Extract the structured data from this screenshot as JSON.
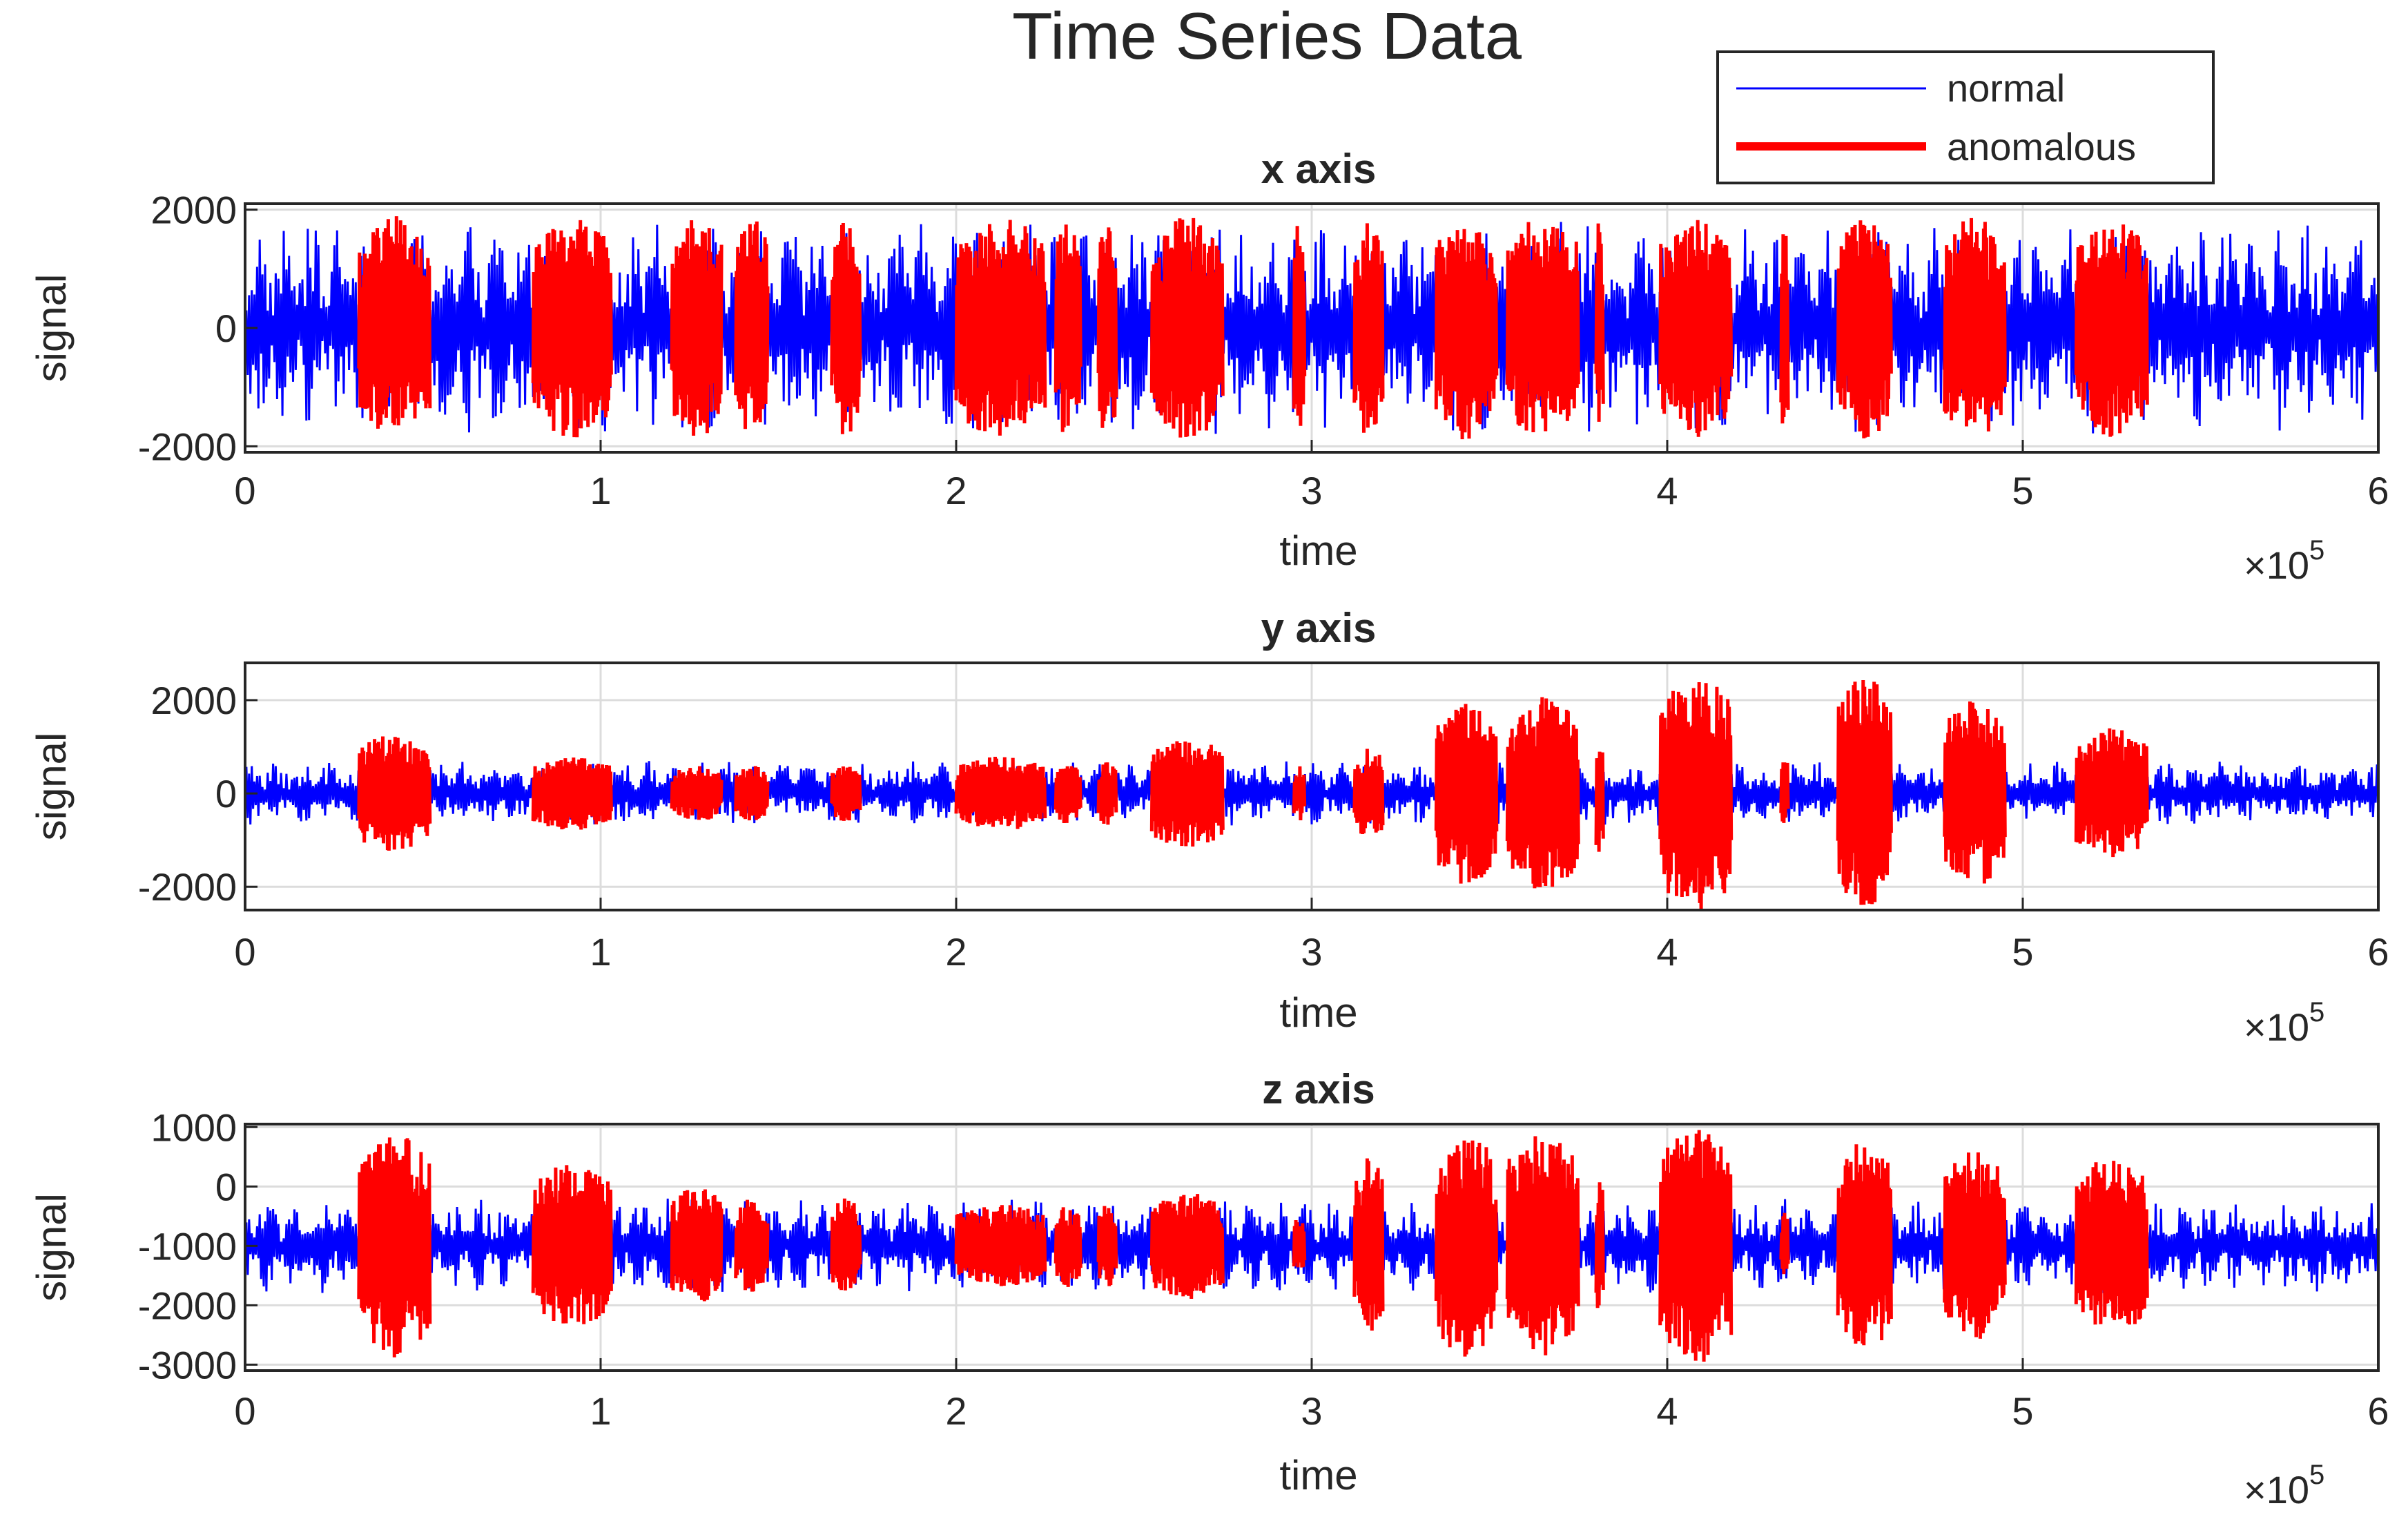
{
  "figure": {
    "title": "Time Series Data"
  },
  "legend": {
    "placement": "top-right",
    "entries": [
      {
        "label": "normal",
        "color": "#0000ff"
      },
      {
        "label": "anomalous",
        "color": "#ff0000"
      }
    ]
  },
  "chart_data": [
    {
      "type": "line",
      "title": "x axis",
      "xlabel": "time",
      "ylabel": "signal",
      "x_exponent": "10",
      "x_exponent_power": "5",
      "x_multiplier": "×",
      "xlim": [
        0,
        6
      ],
      "ylim": [
        -2100,
        2100
      ],
      "xticks": [
        "0",
        "1",
        "2",
        "3",
        "4",
        "5",
        "6"
      ],
      "xtick_values": [
        0,
        1,
        2,
        3,
        4,
        5,
        6
      ],
      "yticks": [
        "-2000",
        "0",
        "2000"
      ],
      "ytick_values": [
        -2000,
        0,
        2000
      ],
      "grid": true,
      "series": [
        {
          "name": "normal",
          "color": "#0000ff",
          "baseline": 0,
          "amplitude": 1800
        },
        {
          "name": "anomalous",
          "color": "#ff0000",
          "baseline": 0,
          "amplitude": 1900,
          "segments": [
            [
              0.32,
              0.52
            ],
            [
              0.81,
              1.03
            ],
            [
              1.2,
              1.34
            ],
            [
              1.38,
              1.47
            ],
            [
              1.65,
              1.73
            ],
            [
              2.0,
              2.25
            ],
            [
              2.28,
              2.35
            ],
            [
              2.4,
              2.45
            ],
            [
              2.55,
              2.75
            ],
            [
              2.95,
              2.98
            ],
            [
              3.12,
              3.2
            ],
            [
              3.35,
              3.52
            ],
            [
              3.55,
              3.75
            ],
            [
              3.8,
              3.82
            ],
            [
              3.98,
              4.18
            ],
            [
              4.32,
              4.34
            ],
            [
              4.48,
              4.63
            ],
            [
              4.78,
              4.95
            ],
            [
              5.15,
              5.35
            ]
          ]
        }
      ]
    },
    {
      "type": "line",
      "title": "y axis",
      "xlabel": "time",
      "ylabel": "signal",
      "x_exponent": "10",
      "x_exponent_power": "5",
      "x_multiplier": "×",
      "xlim": [
        0,
        6
      ],
      "ylim": [
        -2500,
        2800
      ],
      "xticks": [
        "0",
        "1",
        "2",
        "3",
        "4",
        "5",
        "6"
      ],
      "xtick_values": [
        0,
        1,
        2,
        3,
        4,
        5,
        6
      ],
      "yticks": [
        "-2000",
        "0",
        "2000"
      ],
      "ytick_values": [
        -2000,
        0,
        2000
      ],
      "grid": true,
      "series": [
        {
          "name": "normal",
          "color": "#0000ff",
          "baseline": 0,
          "amplitude": 700
        },
        {
          "name": "anomalous",
          "color": "#ff0000",
          "baseline": 0,
          "segments": [
            [
              0.32,
              0.52,
              1300
            ],
            [
              0.81,
              1.03,
              800
            ],
            [
              1.2,
              1.34,
              600
            ],
            [
              1.38,
              1.47,
              600
            ],
            [
              1.65,
              1.73,
              600
            ],
            [
              2.0,
              2.25,
              800
            ],
            [
              2.28,
              2.35,
              700
            ],
            [
              2.4,
              2.45,
              700
            ],
            [
              2.55,
              2.75,
              1200
            ],
            [
              2.95,
              2.98,
              600
            ],
            [
              3.12,
              3.2,
              1000
            ],
            [
              3.35,
              3.52,
              2000
            ],
            [
              3.55,
              3.75,
              2100
            ],
            [
              3.8,
              3.82,
              1500
            ],
            [
              3.98,
              4.18,
              2600
            ],
            [
              4.32,
              4.34,
              800
            ],
            [
              4.48,
              4.63,
              2500
            ],
            [
              4.78,
              4.95,
              2000
            ],
            [
              5.15,
              5.35,
              1400
            ]
          ]
        }
      ]
    },
    {
      "type": "line",
      "title": "z axis",
      "xlabel": "time",
      "ylabel": "signal",
      "x_exponent": "10",
      "x_exponent_power": "5",
      "x_multiplier": "×",
      "xlim": [
        0,
        6
      ],
      "ylim": [
        -3100,
        1050
      ],
      "xticks": [
        "0",
        "1",
        "2",
        "3",
        "4",
        "5",
        "6"
      ],
      "xtick_values": [
        0,
        1,
        2,
        3,
        4,
        5,
        6
      ],
      "yticks": [
        "-3000",
        "-2000",
        "-1000",
        "0",
        "1000"
      ],
      "ytick_values": [
        -3000,
        -2000,
        -1000,
        0,
        1000
      ],
      "grid": true,
      "series": [
        {
          "name": "normal",
          "color": "#0000ff",
          "baseline": -1000,
          "amplitude": 800
        },
        {
          "name": "anomalous",
          "color": "#ff0000",
          "baseline": -1000,
          "segments": [
            [
              0.32,
              0.52,
              1900
            ],
            [
              0.81,
              1.03,
              1400
            ],
            [
              1.2,
              1.34,
              1000
            ],
            [
              1.38,
              1.47,
              800
            ],
            [
              1.65,
              1.73,
              800
            ],
            [
              2.0,
              2.25,
              700
            ],
            [
              2.28,
              2.35,
              700
            ],
            [
              2.4,
              2.45,
              700
            ],
            [
              2.55,
              2.75,
              900
            ],
            [
              2.95,
              2.98,
              500
            ],
            [
              3.12,
              3.2,
              1500
            ],
            [
              3.35,
              3.52,
              1900
            ],
            [
              3.55,
              3.75,
              1900
            ],
            [
              3.8,
              3.82,
              1200
            ],
            [
              3.98,
              4.18,
              2000
            ],
            [
              4.32,
              4.34,
              600
            ],
            [
              4.48,
              4.63,
              1800
            ],
            [
              4.78,
              4.95,
              1600
            ],
            [
              5.15,
              5.35,
              1500
            ]
          ]
        }
      ]
    }
  ]
}
